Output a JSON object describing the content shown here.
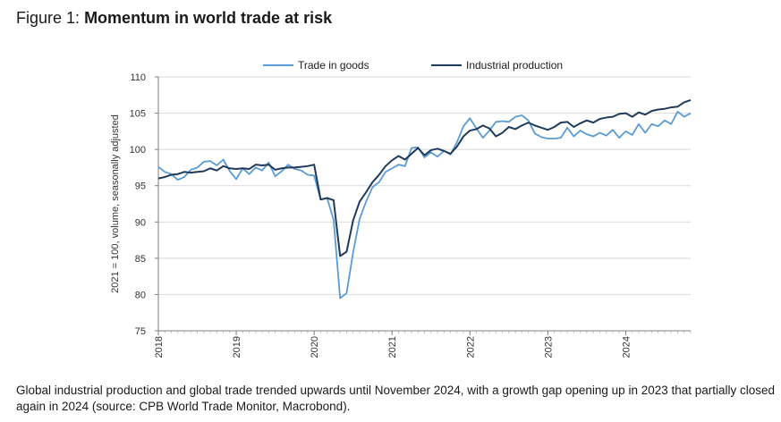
{
  "figure": {
    "label": "Figure 1:",
    "title": "Momentum in world trade at risk",
    "caption": "Global industrial production and global trade trended upwards until November 2024, with a growth gap opening up in 2023 that partially closed again in 2024 (source: CPB World Trade Monitor, Macrobond)."
  },
  "chart_data": {
    "type": "line",
    "title": "Momentum in world trade at risk",
    "ylabel": "2021 = 100, volume, seasonally adjusted",
    "ylim": [
      75,
      110
    ],
    "yticks": [
      75,
      80,
      85,
      90,
      95,
      100,
      105,
      110
    ],
    "xlim": [
      "2018-01",
      "2024-11"
    ],
    "xticks": [
      "2018",
      "2019",
      "2020",
      "2021",
      "2022",
      "2023",
      "2024"
    ],
    "grid": "horizontal",
    "legend": "top-center",
    "x": [
      "2018-01",
      "2018-02",
      "2018-03",
      "2018-04",
      "2018-05",
      "2018-06",
      "2018-07",
      "2018-08",
      "2018-09",
      "2018-10",
      "2018-11",
      "2018-12",
      "2019-01",
      "2019-02",
      "2019-03",
      "2019-04",
      "2019-05",
      "2019-06",
      "2019-07",
      "2019-08",
      "2019-09",
      "2019-10",
      "2019-11",
      "2019-12",
      "2020-01",
      "2020-02",
      "2020-03",
      "2020-04",
      "2020-05",
      "2020-06",
      "2020-07",
      "2020-08",
      "2020-09",
      "2020-10",
      "2020-11",
      "2020-12",
      "2021-01",
      "2021-02",
      "2021-03",
      "2021-04",
      "2021-05",
      "2021-06",
      "2021-07",
      "2021-08",
      "2021-09",
      "2021-10",
      "2021-11",
      "2021-12",
      "2022-01",
      "2022-02",
      "2022-03",
      "2022-04",
      "2022-05",
      "2022-06",
      "2022-07",
      "2022-08",
      "2022-09",
      "2022-10",
      "2022-11",
      "2022-12",
      "2023-01",
      "2023-02",
      "2023-03",
      "2023-04",
      "2023-05",
      "2023-06",
      "2023-07",
      "2023-08",
      "2023-09",
      "2023-10",
      "2023-11",
      "2023-12",
      "2024-01",
      "2024-02",
      "2024-03",
      "2024-04",
      "2024-05",
      "2024-06",
      "2024-07",
      "2024-08",
      "2024-09",
      "2024-10",
      "2024-11"
    ],
    "series": [
      {
        "name": "Trade in goods",
        "color": "#5b9bd5",
        "values": [
          97.6,
          96.9,
          96.6,
          95.8,
          96.2,
          97.2,
          97.5,
          98.3,
          98.4,
          97.8,
          98.6,
          97.0,
          95.9,
          97.4,
          96.6,
          97.5,
          97.1,
          98.2,
          96.3,
          97.0,
          97.9,
          97.3,
          97.1,
          96.5,
          96.4,
          93.1,
          93.3,
          90.3,
          79.5,
          80.2,
          85.8,
          90.4,
          92.8,
          94.8,
          95.5,
          96.9,
          97.4,
          97.9,
          97.7,
          100.2,
          100.3,
          98.9,
          99.6,
          99.0,
          99.8,
          99.3,
          101.0,
          103.2,
          104.3,
          102.9,
          101.6,
          102.6,
          103.8,
          103.9,
          103.8,
          104.5,
          104.7,
          104.0,
          102.2,
          101.7,
          101.5,
          101.5,
          101.6,
          103.0,
          101.8,
          102.6,
          102.1,
          101.8,
          102.3,
          101.9,
          102.7,
          101.6,
          102.5,
          102.0,
          103.5,
          102.3,
          103.5,
          103.2,
          104.0,
          103.5,
          105.2,
          104.5,
          105.0
        ]
      },
      {
        "name": "Industrial production",
        "color": "#1f3a5a",
        "values": [
          96.0,
          96.2,
          96.5,
          96.6,
          96.9,
          96.8,
          96.9,
          97.0,
          97.4,
          97.1,
          97.7,
          97.4,
          97.3,
          97.4,
          97.3,
          97.9,
          97.8,
          97.9,
          97.2,
          97.4,
          97.5,
          97.5,
          97.6,
          97.7,
          97.9,
          93.1,
          93.3,
          93.0,
          85.3,
          85.9,
          90.2,
          92.8,
          94.1,
          95.5,
          96.5,
          97.7,
          98.5,
          99.1,
          98.6,
          99.4,
          100.2,
          99.2,
          99.9,
          100.1,
          99.8,
          99.4,
          100.4,
          101.8,
          102.6,
          102.8,
          103.3,
          102.9,
          101.8,
          102.3,
          103.1,
          102.8,
          103.3,
          103.7,
          103.3,
          103.0,
          102.7,
          103.1,
          103.7,
          103.8,
          103.1,
          103.6,
          104.0,
          103.7,
          104.2,
          104.4,
          104.5,
          104.9,
          105.0,
          104.5,
          105.1,
          104.8,
          105.3,
          105.5,
          105.6,
          105.8,
          105.9,
          106.5,
          106.8
        ]
      }
    ]
  }
}
